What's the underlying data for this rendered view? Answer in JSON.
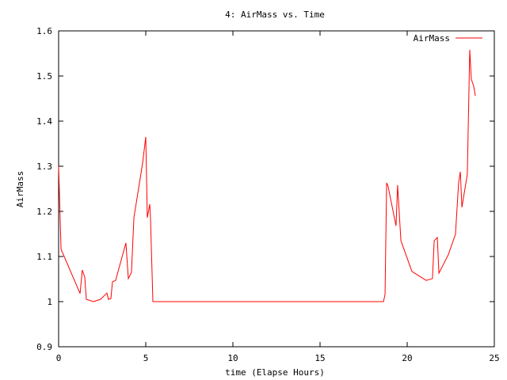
{
  "chart_data": {
    "type": "line",
    "title": "4: AirMass vs. Time",
    "x_label": "time (Elapse Hours)",
    "y_label": "AirMass",
    "xlim": [
      0,
      25
    ],
    "xticks": [
      0,
      5,
      10,
      15,
      20,
      25
    ],
    "ylim": [
      0.9,
      1.6
    ],
    "yticks": [
      0.9,
      1,
      1.1,
      1.2,
      1.3,
      1.4,
      1.5,
      1.6
    ],
    "legend": "top-right",
    "series": [
      {
        "name": "AirMass",
        "color": "#ff0000",
        "x": [
          0,
          0.14,
          1.23,
          1.36,
          1.5,
          1.59,
          2.0,
          2.4,
          2.77,
          2.86,
          3.0,
          3.09,
          3.27,
          3.86,
          4.0,
          4.18,
          4.32,
          4.82,
          5.0,
          5.09,
          5.23,
          5.27,
          5.41,
          18.64,
          18.73,
          18.82,
          18.9,
          19.36,
          19.45,
          19.64,
          20.27,
          21.09,
          21.45,
          21.55,
          21.73,
          21.82,
          22.36,
          22.77,
          22.95,
          23.05,
          23.14,
          23.45,
          23.59,
          23.68,
          23.82,
          23.91
        ],
        "values": [
          1.3,
          1.116,
          1.018,
          1.07,
          1.054,
          1.005,
          1.0,
          1.005,
          1.019,
          1.005,
          1.007,
          1.044,
          1.047,
          1.13,
          1.051,
          1.065,
          1.186,
          1.307,
          1.365,
          1.186,
          1.216,
          1.186,
          1.0,
          1.0,
          1.016,
          1.263,
          1.256,
          1.168,
          1.258,
          1.135,
          1.067,
          1.047,
          1.051,
          1.135,
          1.142,
          1.063,
          1.104,
          1.149,
          1.263,
          1.288,
          1.209,
          1.282,
          1.558,
          1.493,
          1.477,
          1.456
        ]
      }
    ]
  }
}
